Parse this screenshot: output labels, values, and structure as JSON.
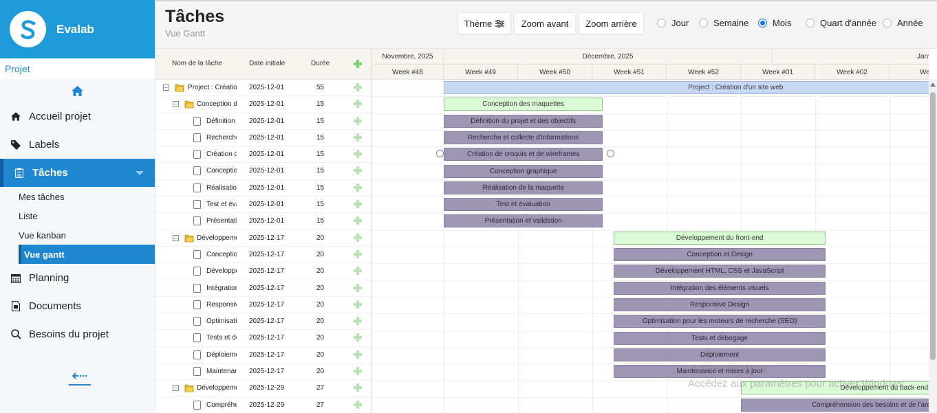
{
  "brand": {
    "name": "Evalab"
  },
  "sidebar": {
    "projet_label": "Projet",
    "items": [
      {
        "label": "Accueil projet",
        "icon": "home-icon"
      },
      {
        "label": "Labels",
        "icon": "tag-icon"
      },
      {
        "label": "Tâches",
        "icon": "clipboard-icon",
        "active": true
      },
      {
        "label": "Planning",
        "icon": "calendar-icon"
      },
      {
        "label": "Documents",
        "icon": "document-icon"
      },
      {
        "label": "Besoins du projet",
        "icon": "search-icon"
      }
    ],
    "subitems": [
      {
        "label": "Mes tâches"
      },
      {
        "label": "Liste"
      },
      {
        "label": "Vue kanban"
      },
      {
        "label": "Vue gantt",
        "active": true
      }
    ]
  },
  "header": {
    "title": "Tâches",
    "subtitle": "Vue Gantt",
    "theme_label": "Thème",
    "zoom_in_label": "Zoom avant",
    "zoom_out_label": "Zoom arrière",
    "scales": [
      {
        "label": "Jour",
        "checked": false
      },
      {
        "label": "Semaine",
        "checked": false
      },
      {
        "label": "Mois",
        "checked": true
      },
      {
        "label": "Quart d'année",
        "checked": false
      },
      {
        "label": "Année",
        "checked": false
      }
    ]
  },
  "grid": {
    "col_name": "Nom de la tâche",
    "col_start": "Date initiale",
    "col_duration": "Durée",
    "rows": [
      {
        "level": 0,
        "type": "project",
        "name": "Project : Création d'un site web",
        "start": "2025-12-01",
        "duration": "55"
      },
      {
        "level": 1,
        "type": "phase",
        "name": "Conception des maquettes",
        "start": "2025-12-01",
        "duration": "15"
      },
      {
        "level": 2,
        "type": "task",
        "name": "Définition du projet et des objectifs",
        "start": "2025-12-01",
        "duration": "15"
      },
      {
        "level": 2,
        "type": "task",
        "name": "Recherche et collecte d'informations",
        "start": "2025-12-01",
        "duration": "15"
      },
      {
        "level": 2,
        "type": "task",
        "name": "Création de croquis et de wireframes",
        "start": "2025-12-01",
        "duration": "15"
      },
      {
        "level": 2,
        "type": "task",
        "name": "Conception graphique",
        "start": "2025-12-01",
        "duration": "15"
      },
      {
        "level": 2,
        "type": "task",
        "name": "Réalisation de la maquette",
        "start": "2025-12-01",
        "duration": "15"
      },
      {
        "level": 2,
        "type": "task",
        "name": "Test et évaluation",
        "start": "2025-12-01",
        "duration": "15"
      },
      {
        "level": 2,
        "type": "task",
        "name": "Présentation et validation",
        "start": "2025-12-01",
        "duration": "15"
      },
      {
        "level": 1,
        "type": "phase",
        "name": "Développement du front-end",
        "start": "2025-12-17",
        "duration": "20"
      },
      {
        "level": 2,
        "type": "task",
        "name": "Conception et Design",
        "start": "2025-12-17",
        "duration": "20"
      },
      {
        "level": 2,
        "type": "task",
        "name": "Développement HTML, CSS et JavaScript",
        "start": "2025-12-17",
        "duration": "20"
      },
      {
        "level": 2,
        "type": "task",
        "name": "Intégration des éléments visuels",
        "start": "2025-12-17",
        "duration": "20"
      },
      {
        "level": 2,
        "type": "task",
        "name": "Responsive Design",
        "start": "2025-12-17",
        "duration": "20"
      },
      {
        "level": 2,
        "type": "task",
        "name": "Optimisation pour les moteurs de recherche (SEO)",
        "start": "2025-12-17",
        "duration": "20"
      },
      {
        "level": 2,
        "type": "task",
        "name": "Tests et débogage",
        "start": "2025-12-17",
        "duration": "20"
      },
      {
        "level": 2,
        "type": "task",
        "name": "Déploiement",
        "start": "2025-12-17",
        "duration": "20"
      },
      {
        "level": 2,
        "type": "task",
        "name": "Maintenance et mises à jour",
        "start": "2025-12-17",
        "duration": "20"
      },
      {
        "level": 1,
        "type": "phase",
        "name": "Développement du back-end",
        "start": "2025-12-29",
        "duration": "27"
      },
      {
        "level": 2,
        "type": "task",
        "name": "Compréhension des besoins et de l'architecture",
        "start": "2025-12-29",
        "duration": "27"
      }
    ]
  },
  "timeline": {
    "months": [
      "Novembre, 2025",
      "Décembre, 2025",
      "Janv"
    ],
    "weeks": [
      "Week #48",
      "Week #49",
      "Week #50",
      "Week #51",
      "Week #52",
      "Week #01",
      "Week #02",
      "Week"
    ]
  },
  "watermark": {
    "line1": "Activer Windows",
    "line2": "Accédez aux paramètres pour activer Windows."
  },
  "colors": {
    "brand": "#1f9ad8",
    "active_nav": "#1f86d0",
    "project_bar": "#c7d8f4",
    "phase_bar": "#dbfbd6",
    "task_bar": "#9f95b5"
  }
}
